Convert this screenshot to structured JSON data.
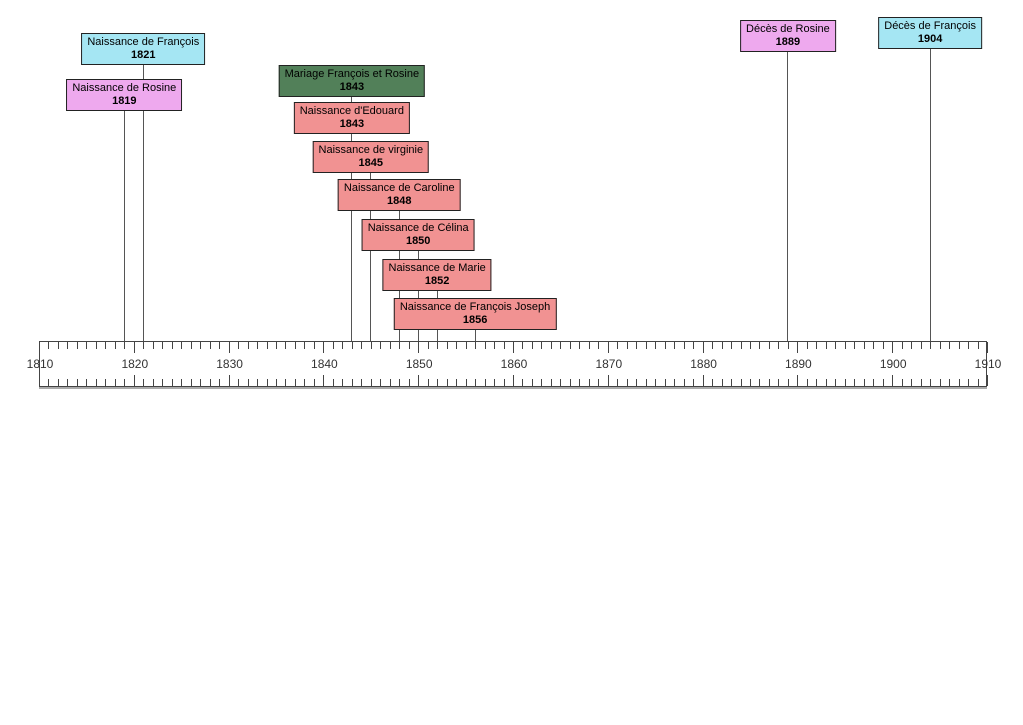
{
  "chart_data": {
    "type": "timeline",
    "title": "",
    "x_axis": {
      "min": 1810,
      "max": 1910,
      "minor_tick_step": 1,
      "label_step": 10,
      "tick_labels": [
        "1810",
        "1820",
        "1830",
        "1840",
        "1850",
        "1860",
        "1870",
        "1880",
        "1890",
        "1900",
        "1910"
      ]
    },
    "events": [
      {
        "label": "Naissance de Rosine",
        "year": 1819,
        "color": "#EEA9EE",
        "kind": "naissance"
      },
      {
        "label": "Naissance de François",
        "year": 1821,
        "color": "#A5E6F3",
        "kind": "naissance"
      },
      {
        "label": "Mariage François et Rosine",
        "year": 1843,
        "color": "#528059",
        "kind": "mariage"
      },
      {
        "label": "Naissance d'Edouard",
        "year": 1843,
        "color": "#F19292",
        "kind": "naissance"
      },
      {
        "label": "Naissance de virginie",
        "year": 1845,
        "color": "#F19292",
        "kind": "naissance"
      },
      {
        "label": "Naissance de Caroline",
        "year": 1848,
        "color": "#F19292",
        "kind": "naissance"
      },
      {
        "label": "Naissance de Célina",
        "year": 1850,
        "color": "#F19292",
        "kind": "naissance"
      },
      {
        "label": "Naissance de Marie",
        "year": 1852,
        "color": "#F19292",
        "kind": "naissance"
      },
      {
        "label": "Naissance de François Joseph",
        "year": 1856,
        "color": "#F19292",
        "kind": "naissance"
      },
      {
        "label": "Décès de Rosine",
        "year": 1889,
        "color": "#EEA9EE",
        "kind": "deces"
      },
      {
        "label": "Décès de François",
        "year": 1904,
        "color": "#A5E6F3",
        "kind": "deces"
      }
    ],
    "colors": {
      "axis_border": "#444444",
      "axis_tick": "#444444",
      "axis_label_text": "#333333",
      "event_line": "#555555",
      "event_box_border": "#222222",
      "event_text": "#000000",
      "background": "#ffffff"
    },
    "layout_hints": {
      "grid": false,
      "legend": "none",
      "axis_position": "bottom-band"
    }
  }
}
